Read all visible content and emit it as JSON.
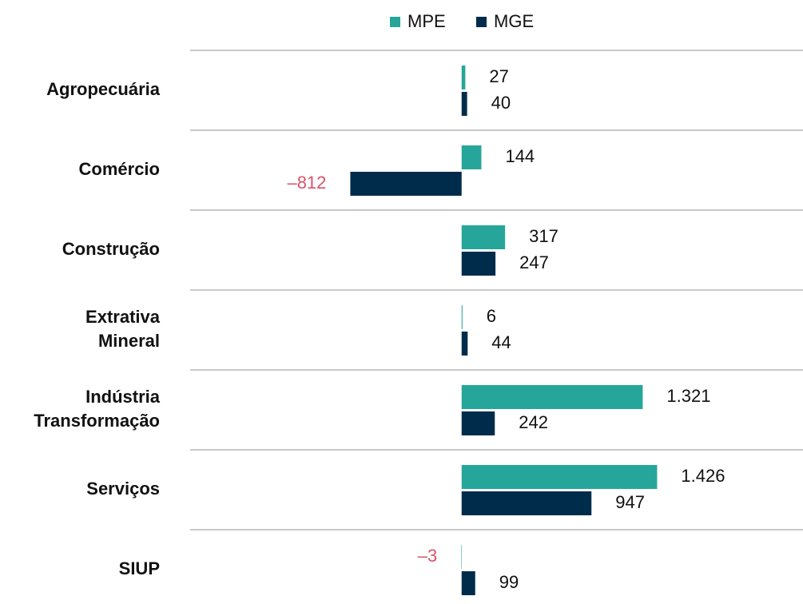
{
  "chart_data": {
    "type": "barh",
    "categories": [
      "Agropecuária",
      "Comércio",
      "Construção",
      "Extrativa\nMineral",
      "Indústria\nTransformação",
      "Serviços",
      "SIUP"
    ],
    "series": [
      {
        "name": "MPE",
        "color": "#26a69a",
        "values": [
          27,
          144,
          317,
          6,
          1321,
          1426,
          -3
        ],
        "value_labels": [
          "27",
          "144",
          "317",
          "6",
          "1.321",
          "1.426",
          "–3"
        ]
      },
      {
        "name": "MGE",
        "color": "#002c4b",
        "values": [
          40,
          -812,
          247,
          44,
          242,
          947,
          99
        ],
        "value_labels": [
          "40",
          "–812",
          "247",
          "44",
          "242",
          "947",
          "99"
        ]
      }
    ],
    "xlim": [
      -1980,
      2490
    ],
    "legend": "top"
  }
}
